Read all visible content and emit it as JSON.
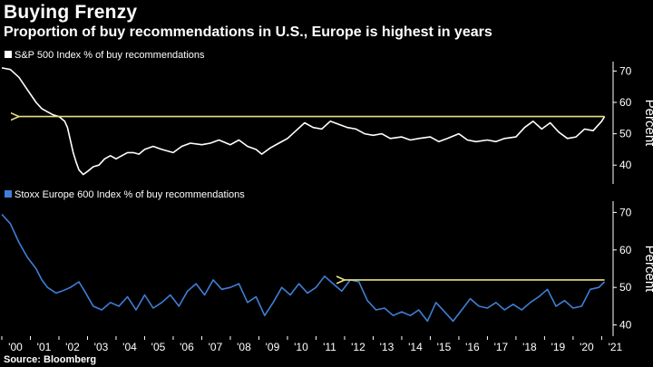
{
  "title": "Buying Frenzy",
  "subtitle": "Proportion of buy recommendations in U.S., Europe is highest in years",
  "source": "Source: Bloomberg",
  "colors": {
    "sp500": "#ffffff",
    "stoxx": "#3f7fd6",
    "arrow": "#e6df86",
    "background": "#000000"
  },
  "chart_data": [
    {
      "type": "line",
      "legend": "S&P 500 Index % of buy recommendations",
      "ylabel": "Percent",
      "ylim": [
        34,
        73
      ],
      "yticks": [
        40,
        50,
        60,
        70
      ],
      "xlim": [
        2000,
        2021.4
      ],
      "annotation": {
        "type": "arrow",
        "from": [
          2021.1,
          55.5
        ],
        "to": [
          2000.6,
          55.5
        ]
      },
      "series": [
        {
          "x": [
            2000.0,
            2000.3,
            2000.6,
            2000.9,
            2001.2,
            2001.4,
            2001.6,
            2001.8,
            2002.0,
            2002.2,
            2002.3,
            2002.5,
            2002.6,
            2002.7,
            2002.85,
            2003.0,
            2003.2,
            2003.4,
            2003.6,
            2003.8,
            2004.0,
            2004.2,
            2004.4,
            2004.6,
            2004.8,
            2005.0,
            2005.3,
            2005.6,
            2006.0,
            2006.3,
            2006.6,
            2007.0,
            2007.3,
            2007.6,
            2008.0,
            2008.3,
            2008.6,
            2008.9,
            2009.1,
            2009.4,
            2009.7,
            2010.0,
            2010.3,
            2010.6,
            2010.9,
            2011.2,
            2011.5,
            2011.8,
            2012.1,
            2012.4,
            2012.7,
            2013.0,
            2013.3,
            2013.6,
            2014.0,
            2014.3,
            2014.6,
            2015.0,
            2015.3,
            2015.6,
            2016.0,
            2016.3,
            2016.6,
            2017.0,
            2017.3,
            2017.6,
            2018.0,
            2018.3,
            2018.6,
            2018.9,
            2019.2,
            2019.5,
            2019.8,
            2020.1,
            2020.4,
            2020.7,
            2021.0,
            2021.1
          ],
          "y": [
            71,
            70.5,
            68,
            64,
            60,
            58,
            57,
            56,
            55.5,
            54,
            52,
            44,
            41,
            38.5,
            37,
            38,
            39.5,
            40,
            42,
            43,
            42,
            43,
            44,
            44,
            43.5,
            45,
            46,
            45,
            44,
            46,
            47,
            46.5,
            47,
            48,
            46.5,
            48,
            46,
            45,
            43.5,
            45.5,
            47,
            48.5,
            51,
            53.5,
            52,
            51.5,
            54,
            53,
            52,
            51.5,
            50,
            49.5,
            50,
            48.5,
            49,
            48,
            48.5,
            49,
            47.5,
            48.5,
            50,
            48,
            47.5,
            48,
            47.5,
            48.5,
            49,
            52,
            54,
            51.5,
            53.5,
            50.5,
            48.5,
            49,
            51.5,
            51,
            54,
            55.5
          ]
        }
      ]
    },
    {
      "type": "line",
      "legend": "Stoxx Europe 600 Index % of buy recommendations",
      "ylabel": "Percent",
      "ylim": [
        37,
        73
      ],
      "yticks": [
        40,
        50,
        60,
        70
      ],
      "xlim": [
        2000,
        2021.4
      ],
      "annotation": {
        "type": "arrow",
        "from": [
          2021.1,
          52
        ],
        "to": [
          2012.0,
          52
        ]
      },
      "xticks": [
        "'00",
        "'01",
        "'02",
        "'03",
        "'04",
        "'05",
        "'06",
        "'07",
        "'08",
        "'09",
        "'10",
        "'11",
        "'12",
        "'13",
        "'14",
        "'15",
        "'16",
        "'17",
        "'18",
        "'19",
        "'20",
        "'21"
      ],
      "series": [
        {
          "x": [
            2000.0,
            2000.3,
            2000.6,
            2000.9,
            2001.2,
            2001.4,
            2001.6,
            2001.9,
            2002.1,
            2002.4,
            2002.7,
            2002.9,
            2003.2,
            2003.5,
            2003.8,
            2004.1,
            2004.4,
            2004.7,
            2005.0,
            2005.3,
            2005.6,
            2005.9,
            2006.2,
            2006.5,
            2006.8,
            2007.1,
            2007.4,
            2007.7,
            2008.0,
            2008.3,
            2008.6,
            2008.9,
            2009.2,
            2009.5,
            2009.8,
            2010.1,
            2010.4,
            2010.7,
            2011.0,
            2011.3,
            2011.6,
            2011.9,
            2012.2,
            2012.5,
            2012.8,
            2013.1,
            2013.4,
            2013.7,
            2014.0,
            2014.3,
            2014.6,
            2014.9,
            2015.2,
            2015.5,
            2015.8,
            2016.1,
            2016.4,
            2016.7,
            2017.0,
            2017.3,
            2017.6,
            2017.9,
            2018.2,
            2018.5,
            2018.8,
            2019.1,
            2019.4,
            2019.7,
            2020.0,
            2020.3,
            2020.6,
            2020.9,
            2021.1
          ],
          "y": [
            69.5,
            67,
            62,
            58,
            55,
            52,
            50,
            48.5,
            49,
            50,
            51.5,
            49,
            45,
            44,
            46,
            45,
            47.5,
            44,
            48,
            44.5,
            46,
            48,
            45,
            49,
            51,
            48,
            52,
            49.5,
            50,
            51,
            46,
            47.5,
            42.5,
            46,
            50,
            48,
            51,
            48.5,
            50,
            53,
            51,
            49,
            52,
            51.5,
            46.5,
            44,
            44.5,
            42.5,
            43.5,
            42.5,
            44,
            41,
            46,
            43.5,
            41,
            44,
            47,
            45,
            44.5,
            46,
            44,
            45.5,
            44,
            46,
            47.5,
            49.5,
            45,
            46.5,
            44.5,
            45,
            49.5,
            50,
            51.5
          ]
        }
      ]
    }
  ]
}
